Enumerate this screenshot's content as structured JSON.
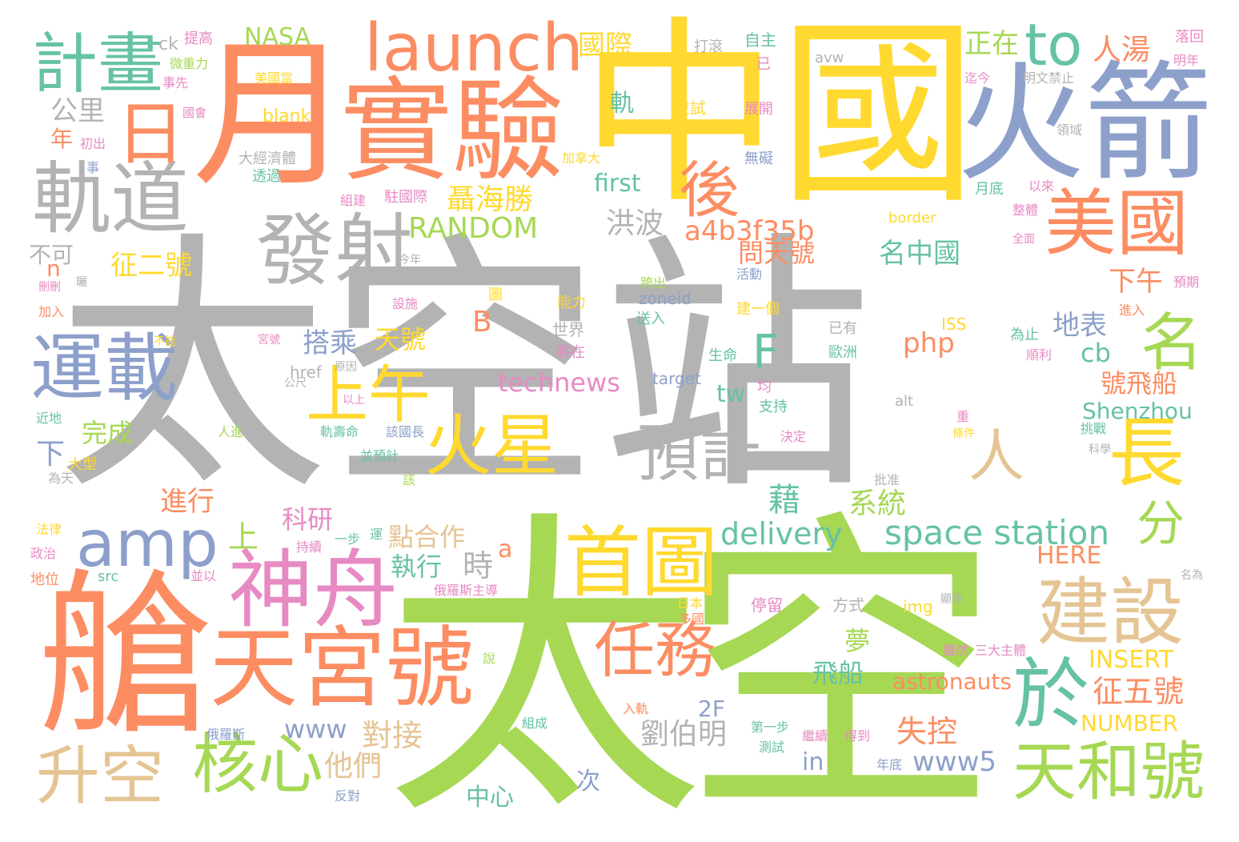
{
  "palette": {
    "gray": "#b3b3b3",
    "orange": "#fc8d62",
    "yellow": "#ffd92f",
    "green": "#a6d854",
    "teal": "#66c2a5",
    "blue": "#8da0cb",
    "pink": "#e78ac3",
    "tan": "#e5c494"
  },
  "words": [
    {
      "text": "太空站",
      "color": "gray"
    },
    {
      "text": "太空",
      "color": "green"
    },
    {
      "text": "中國",
      "color": "yellow"
    },
    {
      "text": "月",
      "color": "orange"
    },
    {
      "text": "艙",
      "color": "orange"
    },
    {
      "text": "實驗",
      "color": "orange"
    },
    {
      "text": "火箭",
      "color": "blue"
    },
    {
      "text": "launch",
      "color": "orange"
    },
    {
      "text": "天宮號",
      "color": "orange"
    },
    {
      "text": "軌道",
      "color": "gray"
    },
    {
      "text": "發射",
      "color": "gray"
    },
    {
      "text": "計畫",
      "color": "teal"
    },
    {
      "text": "日",
      "color": "orange"
    },
    {
      "text": "首圖",
      "color": "yellow"
    },
    {
      "text": "神舟",
      "color": "pink"
    },
    {
      "text": "運載",
      "color": "blue"
    },
    {
      "text": "美國",
      "color": "orange"
    },
    {
      "text": "建設",
      "color": "tan"
    },
    {
      "text": "天和號",
      "color": "green"
    },
    {
      "text": "核心",
      "color": "green"
    },
    {
      "text": "任務",
      "color": "orange"
    },
    {
      "text": "火星",
      "color": "yellow"
    },
    {
      "text": "預計",
      "color": "gray"
    },
    {
      "text": "上午",
      "color": "yellow"
    },
    {
      "text": "後",
      "color": "orange"
    },
    {
      "text": "升空",
      "color": "tan"
    },
    {
      "text": "amp",
      "color": "blue"
    },
    {
      "text": "長",
      "color": "yellow"
    },
    {
      "text": "於",
      "color": "teal"
    },
    {
      "text": "to",
      "color": "teal"
    },
    {
      "text": "名",
      "color": "green"
    },
    {
      "text": "space station",
      "color": "teal"
    },
    {
      "text": "人",
      "color": "tan"
    },
    {
      "text": "F",
      "color": "teal"
    },
    {
      "text": "分",
      "color": "green"
    },
    {
      "text": "delivery",
      "color": "teal"
    },
    {
      "text": "RANDOM",
      "color": "green"
    },
    {
      "text": "聶海勝",
      "color": "yellow"
    },
    {
      "text": "a4b3f35b",
      "color": "orange"
    },
    {
      "text": "人湯",
      "color": "orange"
    },
    {
      "text": "正在",
      "color": "green"
    },
    {
      "text": "國際",
      "color": "yellow"
    },
    {
      "text": "NASA",
      "color": "green"
    },
    {
      "text": "征二號",
      "color": "yellow"
    },
    {
      "text": "洪波",
      "color": "gray"
    },
    {
      "text": "問天號",
      "color": "orange"
    },
    {
      "text": "名中國",
      "color": "teal"
    },
    {
      "text": "下午",
      "color": "orange"
    },
    {
      "text": "地表",
      "color": "blue"
    },
    {
      "text": "technews",
      "color": "pink"
    },
    {
      "text": "tw",
      "color": "teal"
    },
    {
      "text": "php",
      "color": "orange"
    },
    {
      "text": "cb",
      "color": "teal"
    },
    {
      "text": "號飛船",
      "color": "orange"
    },
    {
      "text": "Shenzhou",
      "color": "teal"
    },
    {
      "text": "搭乘",
      "color": "blue"
    },
    {
      "text": "天號",
      "color": "yellow"
    },
    {
      "text": "B",
      "color": "orange"
    },
    {
      "text": "first",
      "color": "teal"
    },
    {
      "text": "公里",
      "color": "gray"
    },
    {
      "text": "年",
      "color": "orange"
    },
    {
      "text": "不可",
      "color": "gray"
    },
    {
      "text": "n",
      "color": "orange"
    },
    {
      "text": "完成",
      "color": "green"
    },
    {
      "text": "下",
      "color": "blue"
    },
    {
      "text": "進行",
      "color": "orange"
    },
    {
      "text": "上",
      "color": "green"
    },
    {
      "text": "科研",
      "color": "pink"
    },
    {
      "text": "藉",
      "color": "teal"
    },
    {
      "text": "系統",
      "color": "green"
    },
    {
      "text": "點合作",
      "color": "tan"
    },
    {
      "text": "執行",
      "color": "teal"
    },
    {
      "text": "時",
      "color": "gray"
    },
    {
      "text": "a",
      "color": "orange"
    },
    {
      "text": "劉伯明",
      "color": "gray"
    },
    {
      "text": "夢",
      "color": "green"
    },
    {
      "text": "飛船",
      "color": "teal"
    },
    {
      "text": "對接",
      "color": "tan"
    },
    {
      "text": "www",
      "color": "blue"
    },
    {
      "text": "他們",
      "color": "tan"
    },
    {
      "text": "失控",
      "color": "orange"
    },
    {
      "text": "www5",
      "color": "blue"
    },
    {
      "text": "征五號",
      "color": "orange"
    },
    {
      "text": "INSERT",
      "color": "yellow"
    },
    {
      "text": "NUMBER",
      "color": "yellow"
    },
    {
      "text": "HERE",
      "color": "orange"
    },
    {
      "text": "astronauts",
      "color": "orange"
    },
    {
      "text": "2F",
      "color": "blue"
    },
    {
      "text": "in",
      "color": "blue"
    },
    {
      "text": "中心",
      "color": "teal"
    },
    {
      "text": "次",
      "color": "blue"
    },
    {
      "text": "blank",
      "color": "yellow"
    },
    {
      "text": "ck",
      "color": "gray"
    },
    {
      "text": "提高",
      "color": "pink"
    },
    {
      "text": "微重力",
      "color": "green"
    },
    {
      "text": "美國當",
      "color": "yellow"
    },
    {
      "text": "事先",
      "color": "pink"
    },
    {
      "text": "國會",
      "color": "pink"
    },
    {
      "text": "初出",
      "color": "pink"
    },
    {
      "text": "事",
      "color": "blue"
    },
    {
      "text": "大經濟體",
      "color": "gray"
    },
    {
      "text": "透過",
      "color": "teal"
    },
    {
      "text": "組建",
      "color": "pink"
    },
    {
      "text": "駐國際",
      "color": "pink"
    },
    {
      "text": "軌",
      "color": "teal"
    },
    {
      "text": "並試",
      "color": "yellow"
    },
    {
      "text": "打滾",
      "color": "gray"
    },
    {
      "text": "自主",
      "color": "teal"
    },
    {
      "text": "已",
      "color": "pink"
    },
    {
      "text": "avw",
      "color": "gray"
    },
    {
      "text": "迄今",
      "color": "pink"
    },
    {
      "text": "明文禁止",
      "color": "gray"
    },
    {
      "text": "落回",
      "color": "pink"
    },
    {
      "text": "明年",
      "color": "pink"
    },
    {
      "text": "展開",
      "color": "pink"
    },
    {
      "text": "加拿大",
      "color": "yellow"
    },
    {
      "text": "無礙",
      "color": "blue"
    },
    {
      "text": "領域",
      "color": "gray"
    },
    {
      "text": "月底",
      "color": "teal"
    },
    {
      "text": "以來",
      "color": "pink"
    },
    {
      "text": "border",
      "color": "yellow"
    },
    {
      "text": "整體",
      "color": "pink"
    },
    {
      "text": "全面",
      "color": "pink"
    },
    {
      "text": "今年",
      "color": "gray"
    },
    {
      "text": "刪刪",
      "color": "pink"
    },
    {
      "text": "曬",
      "color": "gray"
    },
    {
      "text": "加入",
      "color": "orange"
    },
    {
      "text": "設施",
      "color": "pink"
    },
    {
      "text": "圖",
      "color": "yellow"
    },
    {
      "text": "跨出",
      "color": "green"
    },
    {
      "text": "zoneid",
      "color": "blue"
    },
    {
      "text": "送入",
      "color": "teal"
    },
    {
      "text": "能力",
      "color": "yellow"
    },
    {
      "text": "活動",
      "color": "blue"
    },
    {
      "text": "建一個",
      "color": "yellow"
    },
    {
      "text": "預期",
      "color": "pink"
    },
    {
      "text": "進入",
      "color": "orange"
    },
    {
      "text": "世界",
      "color": "gray"
    },
    {
      "text": "已有",
      "color": "gray"
    },
    {
      "text": "ISS",
      "color": "yellow"
    },
    {
      "text": "為止",
      "color": "teal"
    },
    {
      "text": "順利",
      "color": "pink"
    },
    {
      "text": "將在",
      "color": "pink"
    },
    {
      "text": "生命",
      "color": "teal"
    },
    {
      "text": "歐洲",
      "color": "teal"
    },
    {
      "text": "target",
      "color": "blue"
    },
    {
      "text": "不能",
      "color": "yellow"
    },
    {
      "text": "宮號",
      "color": "pink"
    },
    {
      "text": "原因",
      "color": "gray"
    },
    {
      "text": "公尺",
      "color": "gray"
    },
    {
      "text": "以上",
      "color": "pink"
    },
    {
      "text": "href",
      "color": "gray"
    },
    {
      "text": "均",
      "color": "pink"
    },
    {
      "text": "支持",
      "color": "teal"
    },
    {
      "text": "alt",
      "color": "gray"
    },
    {
      "text": "重",
      "color": "pink"
    },
    {
      "text": "條件",
      "color": "yellow"
    },
    {
      "text": "挑戰",
      "color": "teal"
    },
    {
      "text": "科學",
      "color": "gray"
    },
    {
      "text": "近地",
      "color": "teal"
    },
    {
      "text": "人進",
      "color": "green"
    },
    {
      "text": "軌壽命",
      "color": "teal"
    },
    {
      "text": "該國長",
      "color": "blue"
    },
    {
      "text": "決定",
      "color": "pink"
    },
    {
      "text": "大型",
      "color": "yellow"
    },
    {
      "text": "並預計",
      "color": "teal"
    },
    {
      "text": "為天",
      "color": "gray"
    },
    {
      "text": "該",
      "color": "green"
    },
    {
      "text": "批准",
      "color": "gray"
    },
    {
      "text": "法律",
      "color": "yellow"
    },
    {
      "text": "政治",
      "color": "pink"
    },
    {
      "text": "地位",
      "color": "orange"
    },
    {
      "text": "持續",
      "color": "pink"
    },
    {
      "text": "一步",
      "color": "teal"
    },
    {
      "text": "運",
      "color": "teal"
    },
    {
      "text": "src",
      "color": "teal"
    },
    {
      "text": "並以",
      "color": "pink"
    },
    {
      "text": "俄羅斯主導",
      "color": "pink"
    },
    {
      "text": "日本",
      "color": "yellow"
    },
    {
      "text": "多國",
      "color": "orange"
    },
    {
      "text": "停留",
      "color": "pink"
    },
    {
      "text": "方式",
      "color": "gray"
    },
    {
      "text": "img",
      "color": "yellow"
    },
    {
      "text": "顯華",
      "color": "gray"
    },
    {
      "text": "名為",
      "color": "gray"
    },
    {
      "text": "說",
      "color": "green"
    },
    {
      "text": "雖然",
      "color": "pink"
    },
    {
      "text": "三大主體",
      "color": "pink"
    },
    {
      "text": "入軌",
      "color": "orange"
    },
    {
      "text": "俄羅斯",
      "color": "blue"
    },
    {
      "text": "組成",
      "color": "teal"
    },
    {
      "text": "第一步",
      "color": "teal"
    },
    {
      "text": "繼續",
      "color": "pink"
    },
    {
      "text": "測試",
      "color": "teal"
    },
    {
      "text": "得到",
      "color": "pink"
    },
    {
      "text": "年底",
      "color": "blue"
    },
    {
      "text": "反對",
      "color": "blue"
    }
  ]
}
